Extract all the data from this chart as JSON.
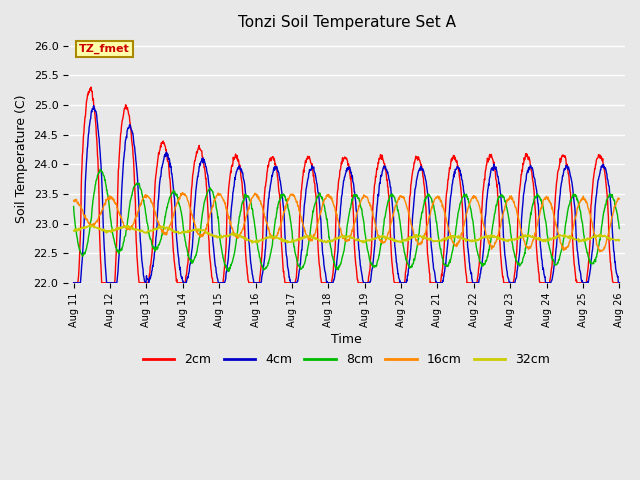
{
  "title": "Tonzi Soil Temperature Set A",
  "xlabel": "Time",
  "ylabel": "Soil Temperature (C)",
  "ylim": [
    22.0,
    26.2
  ],
  "yticks": [
    22.0,
    22.5,
    23.0,
    23.5,
    24.0,
    24.5,
    25.0,
    25.5,
    26.0
  ],
  "start_day": 11,
  "end_day": 26,
  "n_days": 15,
  "series_labels": [
    "2cm",
    "4cm",
    "8cm",
    "16cm",
    "32cm"
  ],
  "series_colors": [
    "#ff0000",
    "#0000cc",
    "#00bb00",
    "#ff8800",
    "#cccc00"
  ],
  "series_linewidths": [
    1.0,
    1.0,
    1.0,
    1.0,
    1.0
  ],
  "annotation_text": "TZ_fmet",
  "bg_color": "#e8e8e8",
  "plot_bg_color": "#e8e8e8",
  "grid_color": "#ffffff",
  "samples_per_day": 96
}
